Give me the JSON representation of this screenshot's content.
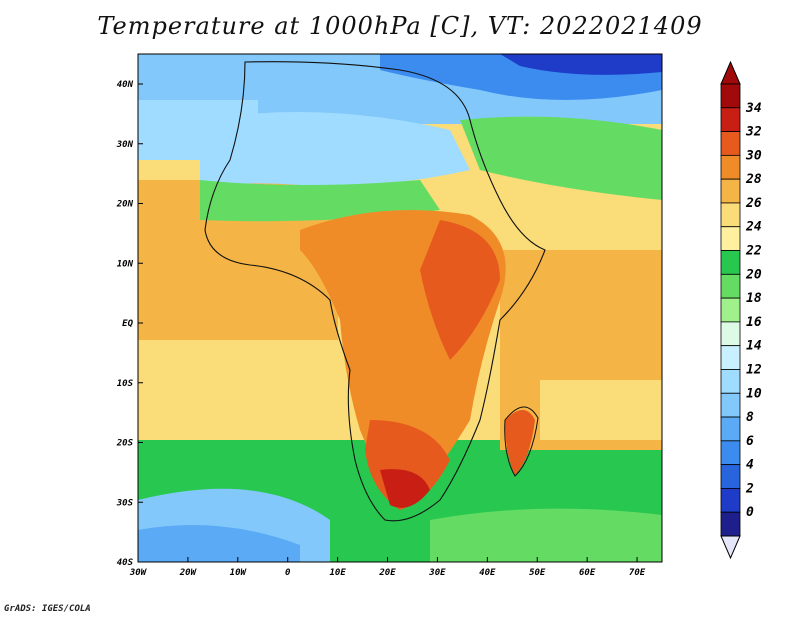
{
  "map": {
    "title": "Temperature at 1000hPa [C], VT: 2022021409",
    "variable": "Temperature at 1000hPa",
    "units": "C",
    "valid_time": "2022021409",
    "region": "Africa",
    "lon_ticks": [
      "30W",
      "20W",
      "10W",
      "0",
      "10E",
      "20E",
      "30E",
      "40E",
      "50E",
      "60E",
      "70E"
    ],
    "lat_ticks": [
      "40N",
      "30N",
      "20N",
      "10N",
      "EQ",
      "10S",
      "20S",
      "30S",
      "40S"
    ],
    "credit": "GrADS: IGES/COLA"
  },
  "colorbar": {
    "labels": [
      "0",
      "2",
      "4",
      "6",
      "8",
      "10",
      "12",
      "14",
      "16",
      "18",
      "20",
      "22",
      "24",
      "26",
      "28",
      "30",
      "32",
      "34"
    ],
    "colors": [
      "#1e1e8c",
      "#1e3cc8",
      "#2864dc",
      "#3c8cf0",
      "#5aaaf5",
      "#82c8fa",
      "#a0dcff",
      "#c8f0ff",
      "#dcfae6",
      "#a0f08c",
      "#64dc64",
      "#28c850",
      "#fff0a0",
      "#fadc78",
      "#f5b446",
      "#f08c28",
      "#e65a1e",
      "#c81e14",
      "#a00a0a"
    ],
    "under_color": "#e6e6fa"
  }
}
